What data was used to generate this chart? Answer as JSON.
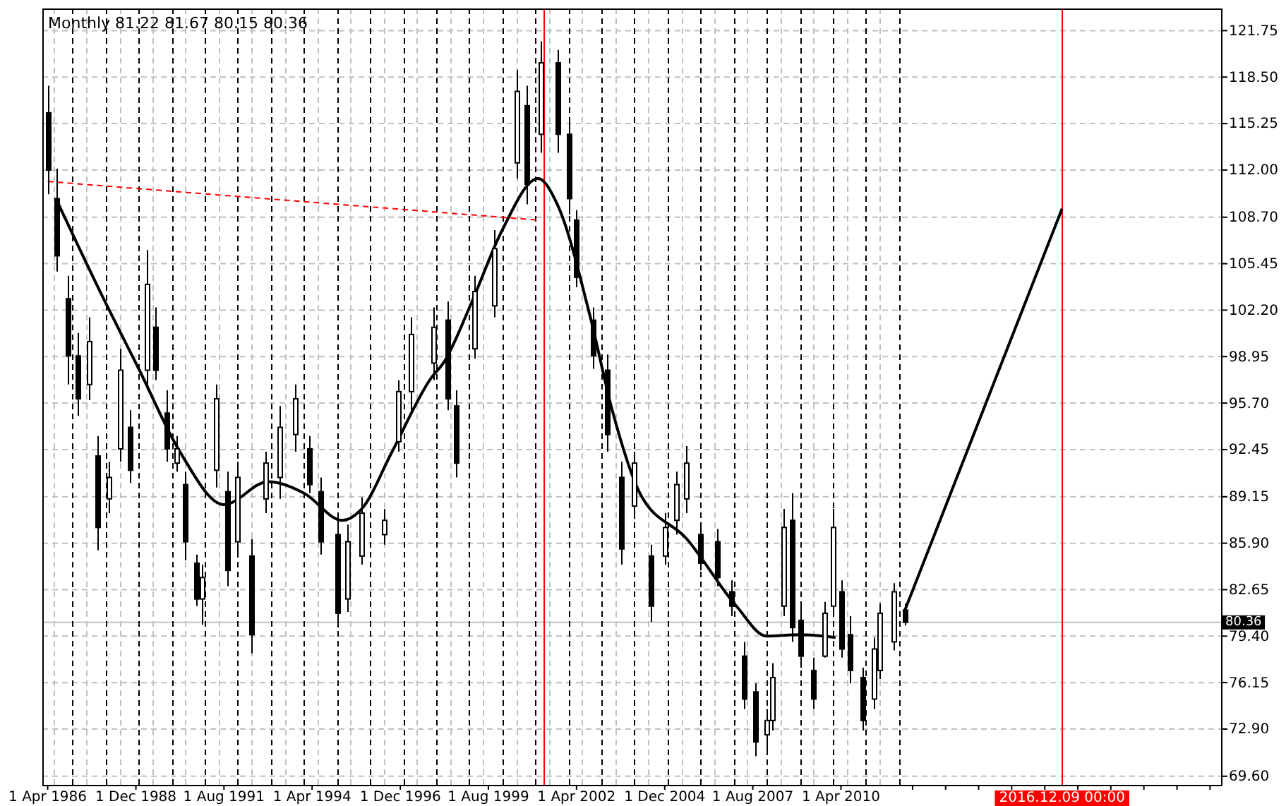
{
  "chart_data": {
    "type": "candlestick",
    "title": "Monthly  81.22 81.67 80.15 80.36",
    "color": "#000000",
    "x": [
      "1986-04",
      "1986-07",
      "1986-11",
      "1987-03",
      "1987-07",
      "1987-10",
      "1988-02",
      "1988-06",
      "1988-10",
      "1989-04",
      "1989-07",
      "1989-11",
      "1990-03",
      "1990-06",
      "1990-10",
      "1990-12",
      "1991-05",
      "1991-09",
      "1992-01",
      "1992-06",
      "1992-11",
      "1993-04",
      "1993-10",
      "1994-03",
      "1994-07",
      "1995-01",
      "1995-05",
      "1995-10",
      "1996-06",
      "1996-11",
      "1997-04",
      "1997-12",
      "1998-05",
      "1998-08",
      "1999-03",
      "1999-10",
      "2000-06",
      "2000-10",
      "2001-03",
      "2001-09",
      "2002-01",
      "2002-04",
      "2002-10",
      "2003-03",
      "2003-08",
      "2004-01",
      "2004-07",
      "2004-12",
      "2005-04",
      "2005-08",
      "2006-01",
      "2006-07",
      "2006-12",
      "2007-05",
      "2007-09",
      "2008-01",
      "2008-03",
      "2008-07",
      "2008-10",
      "2009-01",
      "2009-06",
      "2009-10",
      "2010-01",
      "2010-04",
      "2010-07",
      "2010-12",
      "2011-04",
      "2011-06",
      "2011-11",
      "2012-03"
    ],
    "ohlc": [
      [
        116.0,
        117.9,
        110.3,
        112.0
      ],
      [
        110.0,
        112.1,
        104.9,
        106.0
      ],
      [
        103.0,
        104.6,
        97.0,
        99.0
      ],
      [
        99.0,
        100.6,
        94.8,
        96.0
      ],
      [
        97.0,
        101.7,
        95.9,
        100.0
      ],
      [
        92.0,
        93.4,
        85.4,
        87.0
      ],
      [
        89.0,
        91.6,
        88.0,
        90.5
      ],
      [
        92.5,
        99.5,
        91.6,
        98.0
      ],
      [
        94.0,
        95.2,
        90.1,
        91.0
      ],
      [
        98.0,
        106.4,
        96.6,
        104.0
      ],
      [
        101.0,
        102.4,
        97.3,
        98.0
      ],
      [
        95.0,
        96.6,
        91.6,
        92.5
      ],
      [
        91.5,
        93.4,
        90.9,
        92.5
      ],
      [
        90.0,
        90.9,
        84.7,
        86.0
      ],
      [
        84.5,
        85.1,
        81.5,
        82.0
      ],
      [
        82.0,
        84.4,
        80.2,
        83.5
      ],
      [
        91.0,
        97.0,
        89.8,
        96.0
      ],
      [
        89.5,
        90.9,
        82.9,
        84.0
      ],
      [
        86.0,
        91.6,
        85.1,
        90.5
      ],
      [
        85.0,
        86.2,
        78.2,
        79.5
      ],
      [
        89.0,
        92.3,
        88.0,
        91.5
      ],
      [
        90.5,
        95.5,
        89.0,
        94.0
      ],
      [
        93.5,
        97.0,
        92.3,
        96.0
      ],
      [
        92.5,
        93.4,
        89.4,
        90.0
      ],
      [
        89.5,
        90.5,
        85.1,
        86.0
      ],
      [
        86.5,
        88.0,
        80.0,
        81.0
      ],
      [
        82.0,
        87.2,
        81.1,
        86.0
      ],
      [
        85.0,
        89.1,
        84.4,
        88.0
      ],
      [
        86.5,
        88.3,
        85.8,
        87.5
      ],
      [
        93.0,
        97.3,
        92.3,
        96.5
      ],
      [
        96.5,
        101.7,
        95.2,
        100.5
      ],
      [
        98.5,
        102.4,
        97.3,
        101.0
      ],
      [
        101.5,
        102.8,
        95.2,
        96.0
      ],
      [
        95.5,
        96.6,
        90.5,
        91.5
      ],
      [
        99.5,
        104.6,
        98.8,
        103.5
      ],
      [
        102.5,
        107.8,
        101.7,
        106.5
      ],
      [
        112.5,
        119.0,
        111.4,
        117.5
      ],
      [
        116.5,
        117.9,
        109.6,
        111.0
      ],
      [
        114.5,
        121.0,
        113.2,
        119.5
      ],
      [
        119.5,
        120.4,
        113.2,
        114.5
      ],
      [
        114.5,
        115.4,
        108.9,
        110.0
      ],
      [
        108.5,
        109.2,
        103.8,
        104.5
      ],
      [
        101.5,
        102.4,
        98.1,
        99.0
      ],
      [
        98.0,
        99.1,
        92.3,
        93.5
      ],
      [
        90.5,
        91.6,
        84.4,
        85.5
      ],
      [
        88.5,
        92.3,
        87.6,
        91.5
      ],
      [
        85.0,
        85.8,
        80.4,
        81.5
      ],
      [
        85.0,
        88.0,
        84.4,
        87.0
      ],
      [
        87.5,
        90.9,
        86.5,
        90.0
      ],
      [
        89.0,
        92.7,
        88.0,
        91.5
      ],
      [
        86.5,
        87.2,
        84.0,
        84.5
      ],
      [
        86.0,
        86.9,
        82.9,
        83.5
      ],
      [
        82.5,
        83.3,
        80.8,
        81.5
      ],
      [
        78.0,
        79.0,
        74.3,
        75.0
      ],
      [
        75.5,
        76.1,
        71.0,
        72.0
      ],
      [
        72.5,
        74.3,
        71.4,
        73.5
      ],
      [
        73.5,
        77.5,
        72.8,
        76.5
      ],
      [
        81.5,
        88.3,
        80.8,
        87.0
      ],
      [
        87.5,
        89.4,
        79.0,
        80.0
      ],
      [
        80.5,
        81.5,
        77.2,
        78.0
      ],
      [
        77.0,
        77.9,
        74.3,
        75.0
      ],
      [
        78.0,
        81.8,
        77.9,
        81.0
      ],
      [
        81.5,
        88.3,
        80.8,
        87.0
      ],
      [
        82.5,
        83.3,
        77.9,
        78.5
      ],
      [
        79.5,
        80.8,
        76.1,
        77.0
      ],
      [
        76.5,
        77.2,
        72.8,
        73.5
      ],
      [
        75.0,
        79.3,
        74.3,
        78.5
      ],
      [
        77.0,
        81.7,
        76.4,
        81.0
      ],
      [
        79.0,
        83.1,
        78.4,
        82.5
      ],
      [
        81.22,
        81.67,
        80.15,
        80.36
      ]
    ],
    "series": [
      {
        "type": "line",
        "color": "#000000",
        "line_style": "solid",
        "x": [
          "1986-07",
          "1987-11",
          "1989-01",
          "1990-04",
          "1991-08",
          "1992-12",
          "1994-01",
          "1995-03",
          "1995-10",
          "1996-09",
          "1997-11",
          "1998-04",
          "1999-02",
          "2000-01",
          "2001-02",
          "2001-09",
          "2002-09",
          "2003-05",
          "2004-03",
          "2005-08",
          "2007-02",
          "2008-01",
          "2009-01",
          "2010-02"
        ],
        "values": [
          110.0,
          103.5,
          98.1,
          92.3,
          88.6,
          90.2,
          89.4,
          87.5,
          88.3,
          92.3,
          97.4,
          98.6,
          102.8,
          107.8,
          111.4,
          109.6,
          101.7,
          95.2,
          89.4,
          86.2,
          81.5,
          79.4,
          79.5,
          79.3
        ]
      },
      {
        "type": "line",
        "color": "#000000",
        "line_style": "solid",
        "x": [
          "2012-03",
          "2016-12-09"
        ],
        "values": [
          81.1,
          109.3
        ]
      },
      {
        "type": "line",
        "color": "#ff0000",
        "line_style": "dashed",
        "x": [
          "1986-04",
          "2001-02"
        ],
        "values": [
          111.2,
          108.5
        ]
      }
    ],
    "xlim": [
      "1986-02",
      "2021-10"
    ],
    "xticks": [
      {
        "value": "1986-04",
        "label": "1 Apr 1986"
      },
      {
        "value": "1988-12",
        "label": "1 Dec 1988"
      },
      {
        "value": "1991-08",
        "label": "1 Aug 1991"
      },
      {
        "value": "1994-04",
        "label": "1 Apr 1994"
      },
      {
        "value": "1996-12",
        "label": "1 Dec 1996"
      },
      {
        "value": "1999-08",
        "label": "1 Aug 1999"
      },
      {
        "value": "2002-04",
        "label": "1 Apr 2002"
      },
      {
        "value": "2004-12",
        "label": "1 Dec 2004"
      },
      {
        "value": "2007-08",
        "label": "1 Aug 2007"
      },
      {
        "value": "2010-04",
        "label": "1 Apr 2010"
      },
      {
        "value": "2012-06",
        "label": null
      },
      {
        "value": "2013-06",
        "label": null
      },
      {
        "value": "2014-06",
        "label": null
      },
      {
        "value": "2015-06",
        "label": null
      },
      {
        "value": "2016-06",
        "label": null
      },
      {
        "value": "2017-06",
        "label": null
      },
      {
        "value": "2018-06",
        "label": null
      },
      {
        "value": "2019-06",
        "label": null
      },
      {
        "value": "2020-06",
        "label": null
      },
      {
        "value": "2021-06",
        "label": null
      }
    ],
    "ylim": [
      69.0,
      123.3
    ],
    "yticks": [
      121.75,
      {
        "value": 118.5,
        "label": "118.50"
      },
      115.25,
      {
        "value": 112,
        "label": "112.00"
      },
      {
        "value": 108.7,
        "label": "108.70"
      },
      105.45,
      {
        "value": 102.2,
        "label": "102.20"
      },
      98.95,
      {
        "value": 95.7,
        "label": "95.70"
      },
      92.45,
      89.15,
      {
        "value": 85.9,
        "label": "85.90"
      },
      82.65,
      {
        "value": 79.4,
        "label": "79.40"
      },
      76.15,
      {
        "value": 72.9,
        "label": "72.90"
      },
      {
        "value": 69.6,
        "label": "69.60"
      }
    ],
    "grid": "y",
    "ref_lines": [
      {
        "axis": "y",
        "value": 80.36,
        "label": "80.36",
        "color": "#c0c0c0",
        "line_style": "solid"
      },
      {
        "axis": "x",
        "value": "2001-04",
        "label": null,
        "color": "#ff0000",
        "line_style": "solid"
      },
      {
        "axis": "x",
        "value": "2016-12-09",
        "label": "2016.12.09 00:00",
        "color": "#ff0000",
        "line_style": "solid"
      },
      {
        "axis": "x",
        "value": "1986-06",
        "label": null,
        "color": "#c0c0c0",
        "line_style": "dashed"
      },
      {
        "axis": "x",
        "value": "1987-06",
        "label": null,
        "color": "#c0c0c0",
        "line_style": "dashed"
      },
      {
        "axis": "x",
        "value": "1988-06",
        "label": null,
        "color": "#c0c0c0",
        "line_style": "dashed"
      },
      {
        "axis": "x",
        "value": "1989-06",
        "label": null,
        "color": "#c0c0c0",
        "line_style": "dashed"
      },
      {
        "axis": "x",
        "value": "1990-06",
        "label": null,
        "color": "#c0c0c0",
        "line_style": "dashed"
      },
      {
        "axis": "x",
        "value": "1991-06",
        "label": null,
        "color": "#c0c0c0",
        "line_style": "dashed"
      },
      {
        "axis": "x",
        "value": "1992-06",
        "label": null,
        "color": "#c0c0c0",
        "line_style": "dashed"
      },
      {
        "axis": "x",
        "value": "1993-06",
        "label": null,
        "color": "#c0c0c0",
        "line_style": "dashed"
      },
      {
        "axis": "x",
        "value": "1994-06",
        "label": null,
        "color": "#c0c0c0",
        "line_style": "dashed"
      },
      {
        "axis": "x",
        "value": "1995-06",
        "label": null,
        "color": "#c0c0c0",
        "line_style": "dashed"
      },
      {
        "axis": "x",
        "value": "1996-06",
        "label": null,
        "color": "#c0c0c0",
        "line_style": "dashed"
      },
      {
        "axis": "x",
        "value": "1997-06",
        "label": null,
        "color": "#c0c0c0",
        "line_style": "dashed"
      },
      {
        "axis": "x",
        "value": "1998-06",
        "label": null,
        "color": "#c0c0c0",
        "line_style": "dashed"
      },
      {
        "axis": "x",
        "value": "1999-06",
        "label": null,
        "color": "#c0c0c0",
        "line_style": "dashed"
      },
      {
        "axis": "x",
        "value": "2000-06",
        "label": null,
        "color": "#c0c0c0",
        "line_style": "dashed"
      },
      {
        "axis": "x",
        "value": "2001-06",
        "label": null,
        "color": "#c0c0c0",
        "line_style": "dashed"
      },
      {
        "axis": "x",
        "value": "2002-06",
        "label": null,
        "color": "#c0c0c0",
        "line_style": "dashed"
      },
      {
        "axis": "x",
        "value": "2003-06",
        "label": null,
        "color": "#c0c0c0",
        "line_style": "dashed"
      },
      {
        "axis": "x",
        "value": "2004-06",
        "label": null,
        "color": "#c0c0c0",
        "line_style": "dashed"
      },
      {
        "axis": "x",
        "value": "2005-06",
        "label": null,
        "color": "#c0c0c0",
        "line_style": "dashed"
      },
      {
        "axis": "x",
        "value": "2006-06",
        "label": null,
        "color": "#c0c0c0",
        "line_style": "dashed"
      },
      {
        "axis": "x",
        "value": "2007-06",
        "label": null,
        "color": "#c0c0c0",
        "line_style": "dashed"
      },
      {
        "axis": "x",
        "value": "2008-06",
        "label": null,
        "color": "#c0c0c0",
        "line_style": "dashed"
      },
      {
        "axis": "x",
        "value": "2009-06",
        "label": null,
        "color": "#c0c0c0",
        "line_style": "dashed"
      },
      {
        "axis": "x",
        "value": "2010-06",
        "label": null,
        "color": "#c0c0c0",
        "line_style": "dashed"
      },
      {
        "axis": "x",
        "value": "2011-06",
        "label": null,
        "color": "#c0c0c0",
        "line_style": "dashed"
      },
      {
        "axis": "x",
        "value": "1987-01",
        "label": null,
        "color": "#000000",
        "line_style": "dashed"
      },
      {
        "axis": "x",
        "value": "1988-01",
        "label": null,
        "color": "#000000",
        "line_style": "dashed"
      },
      {
        "axis": "x",
        "value": "1989-01",
        "label": null,
        "color": "#000000",
        "line_style": "dashed"
      },
      {
        "axis": "x",
        "value": "1990-01",
        "label": null,
        "color": "#000000",
        "line_style": "dashed"
      },
      {
        "axis": "x",
        "value": "1991-01",
        "label": null,
        "color": "#000000",
        "line_style": "dashed"
      },
      {
        "axis": "x",
        "value": "1992-01",
        "label": null,
        "color": "#000000",
        "line_style": "dashed"
      },
      {
        "axis": "x",
        "value": "1993-01",
        "label": null,
        "color": "#000000",
        "line_style": "dashed"
      },
      {
        "axis": "x",
        "value": "1994-01",
        "label": null,
        "color": "#000000",
        "line_style": "dashed"
      },
      {
        "axis": "x",
        "value": "1995-01",
        "label": null,
        "color": "#000000",
        "line_style": "dashed"
      },
      {
        "axis": "x",
        "value": "1996-01",
        "label": null,
        "color": "#000000",
        "line_style": "dashed"
      },
      {
        "axis": "x",
        "value": "1997-01",
        "label": null,
        "color": "#000000",
        "line_style": "dashed"
      },
      {
        "axis": "x",
        "value": "1998-01",
        "label": null,
        "color": "#000000",
        "line_style": "dashed"
      },
      {
        "axis": "x",
        "value": "1999-01",
        "label": null,
        "color": "#000000",
        "line_style": "dashed"
      },
      {
        "axis": "x",
        "value": "2000-01",
        "label": null,
        "color": "#000000",
        "line_style": "dashed"
      },
      {
        "axis": "x",
        "value": "2001-01",
        "label": null,
        "color": "#000000",
        "line_style": "dashed"
      },
      {
        "axis": "x",
        "value": "2002-01",
        "label": null,
        "color": "#000000",
        "line_style": "dashed"
      },
      {
        "axis": "x",
        "value": "2003-01",
        "label": null,
        "color": "#000000",
        "line_style": "dashed"
      },
      {
        "axis": "x",
        "value": "2004-01",
        "label": null,
        "color": "#000000",
        "line_style": "dashed"
      },
      {
        "axis": "x",
        "value": "2005-01",
        "label": null,
        "color": "#000000",
        "line_style": "dashed"
      },
      {
        "axis": "x",
        "value": "2006-01",
        "label": null,
        "color": "#000000",
        "line_style": "dashed"
      },
      {
        "axis": "x",
        "value": "2007-01",
        "label": null,
        "color": "#000000",
        "line_style": "dashed"
      },
      {
        "axis": "x",
        "value": "2008-01",
        "label": null,
        "color": "#000000",
        "line_style": "dashed"
      },
      {
        "axis": "x",
        "value": "2009-01",
        "label": null,
        "color": "#000000",
        "line_style": "dashed"
      },
      {
        "axis": "x",
        "value": "2010-01",
        "label": null,
        "color": "#000000",
        "line_style": "dashed"
      },
      {
        "axis": "x",
        "value": "2011-01",
        "label": null,
        "color": "#000000",
        "line_style": "dashed"
      },
      {
        "axis": "x",
        "value": "2012-01",
        "label": null,
        "color": "#000000",
        "line_style": "dashed"
      }
    ]
  }
}
